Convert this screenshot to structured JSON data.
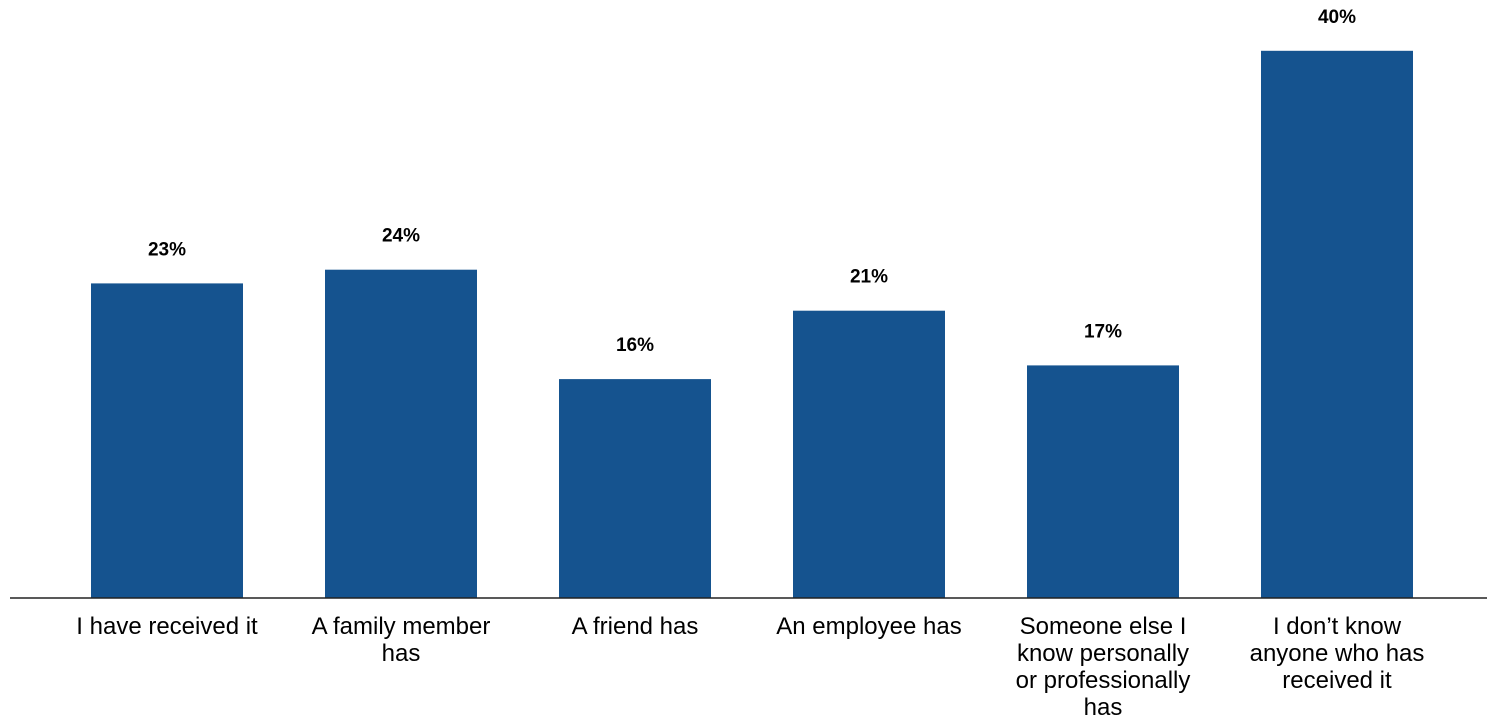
{
  "chart_data": {
    "type": "bar",
    "categories": [
      "I have received it",
      "A family member has",
      "A friend has",
      "An employee has",
      "Someone else I know personally or professionally has",
      "I don’t know anyone who has received it"
    ],
    "category_lines": [
      [
        "I have received it"
      ],
      [
        "A family member",
        "has"
      ],
      [
        "A friend has"
      ],
      [
        "An employee has"
      ],
      [
        "Someone else I",
        "know personally",
        "or professionally",
        "has"
      ],
      [
        "I don’t know",
        "anyone who has",
        "received it"
      ]
    ],
    "values": [
      23,
      24,
      16,
      21,
      17,
      40
    ],
    "data_labels": [
      "23%",
      "24%",
      "16%",
      "21%",
      "17%",
      "40%"
    ],
    "title": "",
    "xlabel": "",
    "ylabel": "",
    "ylim": [
      0,
      40
    ],
    "grid": false,
    "legend": "none",
    "colors": {
      "bar": "#15538F",
      "axis": "#222222",
      "text": "#000000"
    }
  }
}
